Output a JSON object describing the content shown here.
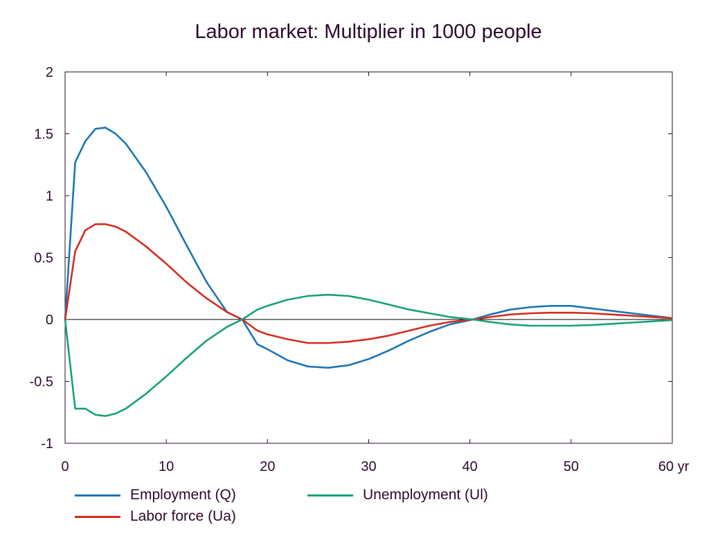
{
  "chart_data": {
    "type": "line",
    "title": "Labor market: Multiplier in 1000 people",
    "xlim": [
      0,
      60
    ],
    "ylim": [
      -1,
      2
    ],
    "x_ticks": [
      "0",
      "10",
      "20",
      "30",
      "40",
      "50",
      "60 yr"
    ],
    "y_ticks": [
      "-1",
      "-0.5",
      "0",
      "0.5",
      "1",
      "1.5",
      "2"
    ],
    "x_tick_values": [
      0,
      10,
      20,
      30,
      40,
      50,
      60
    ],
    "y_tick_values": [
      -1,
      -0.5,
      0,
      0.5,
      1,
      1.5,
      2
    ],
    "grid": false,
    "legend_position": "bottom",
    "x": [
      0,
      1,
      2,
      3,
      4,
      5,
      6,
      8,
      10,
      12,
      14,
      16,
      17.5,
      19,
      20,
      22,
      24,
      26,
      28,
      30,
      32,
      34,
      36,
      38,
      40.3,
      42,
      44,
      46,
      48,
      50,
      52,
      54,
      56,
      58,
      60
    ],
    "series": [
      {
        "name": "Employment (Q)",
        "color": "#1b75b2",
        "values": [
          0,
          1.27,
          1.44,
          1.54,
          1.55,
          1.5,
          1.42,
          1.19,
          0.91,
          0.6,
          0.3,
          0.06,
          0,
          -0.2,
          -0.24,
          -0.33,
          -0.38,
          -0.39,
          -0.37,
          -0.32,
          -0.25,
          -0.17,
          -0.1,
          -0.04,
          0,
          0.04,
          0.08,
          0.1,
          0.11,
          0.11,
          0.09,
          0.07,
          0.05,
          0.03,
          0.01
        ]
      },
      {
        "name": "Labor force (Ua)",
        "color": "#d42c1f",
        "values": [
          0,
          0.55,
          0.72,
          0.77,
          0.77,
          0.75,
          0.71,
          0.59,
          0.45,
          0.3,
          0.17,
          0.06,
          0,
          -0.09,
          -0.12,
          -0.16,
          -0.19,
          -0.19,
          -0.18,
          -0.16,
          -0.13,
          -0.09,
          -0.05,
          -0.02,
          0,
          0.02,
          0.04,
          0.05,
          0.055,
          0.055,
          0.05,
          0.04,
          0.03,
          0.02,
          0.01
        ]
      },
      {
        "name": "Unemployment (Ul)",
        "color": "#16a07a",
        "values": [
          0,
          -0.72,
          -0.72,
          -0.77,
          -0.78,
          -0.76,
          -0.72,
          -0.6,
          -0.46,
          -0.31,
          -0.17,
          -0.06,
          0,
          0.08,
          0.11,
          0.16,
          0.19,
          0.2,
          0.19,
          0.16,
          0.12,
          0.08,
          0.05,
          0.02,
          0,
          -0.02,
          -0.04,
          -0.05,
          -0.05,
          -0.05,
          -0.045,
          -0.035,
          -0.025,
          -0.015,
          -0.005
        ]
      }
    ]
  }
}
